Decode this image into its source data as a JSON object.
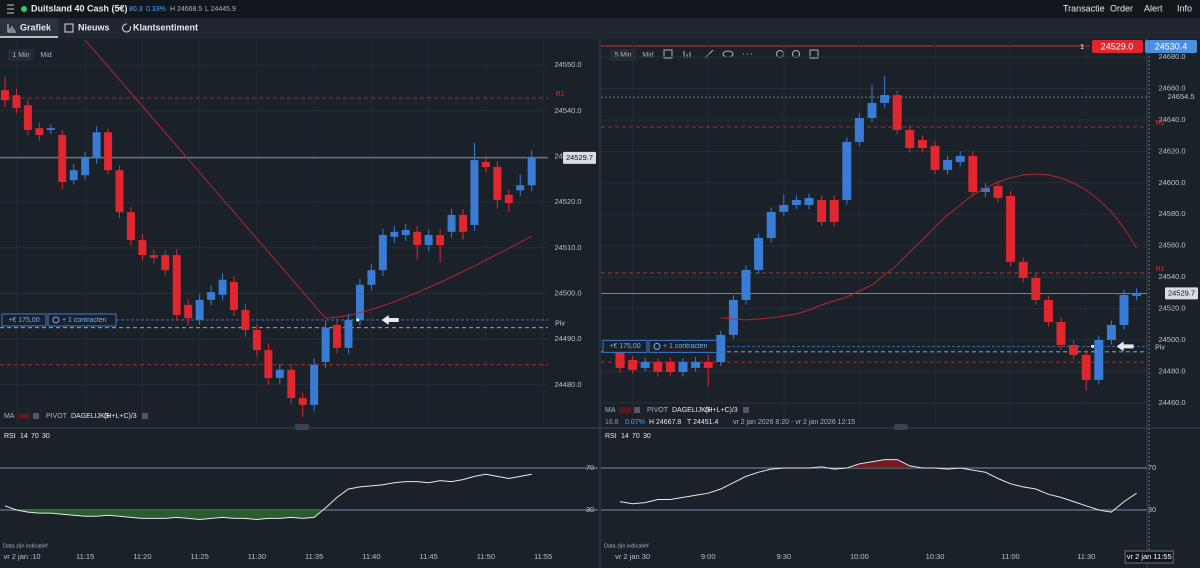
{
  "header": {
    "instrument": "Duitsland 40 Cash (5€)",
    "change": "80.3",
    "change_pct": "0.33%",
    "high": "H 24668.5",
    "low": "L 24445.9",
    "menu": [
      "Transactie",
      "Order",
      "Alert",
      "Info"
    ]
  },
  "tabs": [
    "Grafiek",
    "Nieuws",
    "Klantsentiment"
  ],
  "charts": [
    {
      "toolbar": [
        "1 Min",
        "Mid"
      ],
      "ylim": [
        24471.2,
        24555.5
      ],
      "yticks": [
        {
          "value": 24550,
          "label": "24550.0"
        },
        {
          "value": 24540,
          "label": "24540.0"
        },
        {
          "value": 24530,
          "label": "24530.0"
        },
        {
          "value": 24520,
          "label": "24520.0"
        },
        {
          "value": 24510,
          "label": "24510.0"
        },
        {
          "value": 24500,
          "label": "24500.0"
        },
        {
          "value": 24490,
          "label": "24490.0"
        },
        {
          "value": 24480,
          "label": "24480.0"
        }
      ],
      "xticks": [
        {
          "value": 1,
          "label": "vr 2 jan :10"
        },
        {
          "value": 7,
          "label": "11:15"
        },
        {
          "value": 12,
          "label": "11:20"
        },
        {
          "value": 17,
          "label": "11:25"
        },
        {
          "value": 22,
          "label": "11:30"
        },
        {
          "value": 27,
          "label": "11:35"
        },
        {
          "value": 32,
          "label": "11:40"
        },
        {
          "value": 37,
          "label": "11:45"
        },
        {
          "value": 42,
          "label": "11:50"
        },
        {
          "value": 47,
          "label": "11:55"
        }
      ],
      "up_color": "#3a7bd5",
      "down_color": "#e0262f",
      "ma_color": "#b3262c",
      "candles": [
        [
          24544.5,
          24547.5,
          24540.8,
          24542.3
        ],
        [
          24543.4,
          24544.8,
          24539.5,
          24540.6
        ],
        [
          24541.2,
          24542.5,
          24534.6,
          24535.8
        ],
        [
          24536.2,
          24537.4,
          24533.5,
          24534.7
        ],
        [
          24535.8,
          24537.0,
          24534.9,
          24536.2
        ],
        [
          24534.7,
          24535.8,
          24522.8,
          24524.4
        ],
        [
          24524.8,
          24528.3,
          24523.9,
          24527.0
        ],
        [
          24525.9,
          24531.0,
          24524.9,
          24529.6
        ],
        [
          24529.6,
          24536.6,
          24528.4,
          24535.3
        ],
        [
          24535.3,
          24536.1,
          24526.0,
          24527.0
        ],
        [
          24527.0,
          24528.0,
          24516.5,
          24517.8
        ],
        [
          24517.8,
          24519.0,
          24510.5,
          24511.7
        ],
        [
          24511.7,
          24513.0,
          24507.2,
          24508.4
        ],
        [
          24508.4,
          24509.6,
          24506.5,
          24507.8
        ],
        [
          24508.4,
          24509.5,
          24503.9,
          24505.1
        ],
        [
          24508.4,
          24509.7,
          24494.0,
          24495.3
        ],
        [
          24497.5,
          24498.7,
          24493.0,
          24494.6
        ],
        [
          24494.2,
          24499.9,
          24493.1,
          24498.6
        ],
        [
          24498.6,
          24501.8,
          24497.4,
          24500.3
        ],
        [
          24499.7,
          24504.4,
          24498.5,
          24503.0
        ],
        [
          24502.5,
          24503.8,
          24495.1,
          24496.4
        ],
        [
          24496.4,
          24497.7,
          24490.6,
          24492.0
        ],
        [
          24492.0,
          24493.4,
          24486.2,
          24487.6
        ],
        [
          24487.6,
          24489.0,
          24480.1,
          24481.5
        ],
        [
          24481.5,
          24484.6,
          24480.2,
          24483.3
        ],
        [
          24483.3,
          24484.5,
          24475.8,
          24477.1
        ],
        [
          24477.1,
          24478.3,
          24473.0,
          24475.6
        ],
        [
          24475.6,
          24485.8,
          24474.2,
          24484.4
        ],
        [
          24485.0,
          24494.1,
          24483.7,
          24492.5
        ],
        [
          24493.1,
          24494.4,
          24486.9,
          24488.1
        ],
        [
          24488.1,
          24495.5,
          24486.8,
          24494.2
        ],
        [
          24494.2,
          24503.2,
          24493.0,
          24501.9
        ],
        [
          24501.9,
          24506.4,
          24500.7,
          24505.1
        ],
        [
          24505.1,
          24514.1,
          24503.8,
          24512.8
        ],
        [
          24512.4,
          24514.8,
          24511.1,
          24513.5
        ],
        [
          24512.8,
          24515.2,
          24511.5,
          24513.9
        ],
        [
          24513.5,
          24514.7,
          24507.4,
          24510.6
        ],
        [
          24510.6,
          24514.0,
          24509.3,
          24512.8
        ],
        [
          24512.8,
          24514.1,
          24506.9,
          24510.6
        ],
        [
          24513.5,
          24518.5,
          24512.2,
          24517.2
        ],
        [
          24517.2,
          24518.4,
          24511.8,
          24513.5
        ],
        [
          24515.0,
          24533.0,
          24513.7,
          24529.2
        ],
        [
          24528.8,
          24530.1,
          24526.4,
          24527.7
        ],
        [
          24527.7,
          24528.9,
          24518.6,
          24520.5
        ],
        [
          24521.6,
          24522.8,
          24517.9,
          24519.8
        ],
        [
          24522.6,
          24526.1,
          24521.3,
          24523.7
        ],
        [
          24523.7,
          24531.3,
          24522.4,
          24529.9
        ]
      ],
      "ma": [
        null,
        null,
        null,
        null,
        null,
        null,
        null,
        24555.5,
        24552.6,
        24549.7,
        24546.8,
        24543.9,
        24541.0,
        24538.1,
        24535.2,
        24532.3,
        24529.4,
        24526.5,
        24523.6,
        24520.7,
        24517.8,
        24514.9,
        24512.0,
        24509.1,
        24506.2,
        24503.3,
        24500.4,
        24497.5,
        24494.6,
        24494.8,
        24495.2,
        24495.8,
        24496.5,
        24497.3,
        24498.2,
        24499.2,
        24500.2,
        24501.3,
        24502.4,
        24503.6,
        24504.8,
        24506.0,
        24507.3,
        24508.6,
        24509.9,
        24511.2,
        24512.5
      ],
      "levels": [
        {
          "label": "R1",
          "value": 24542.8,
          "color": "#c0392b"
        },
        {
          "label": "Piv",
          "value": 24492.5,
          "color": "#c9d1d9"
        },
        {
          "value": 24484.4,
          "color": "#c0392b"
        }
      ],
      "last": 24529.7,
      "order": {
        "amount": "+€ 175,00",
        "contracts": "+ 1 contracten",
        "value": 24494.2
      },
      "legend": {
        "ma": "MA",
        "pivot": "PIVOT",
        "pivot_type": "DAGELIJKS",
        "formula": "(H+L+C)/3"
      },
      "rsi": {
        "label": "RSI",
        "params": [
          "14",
          "70",
          "30"
        ],
        "ylim": [
          0,
          100
        ],
        "yticks": [
          70,
          30
        ],
        "values": [
          34,
          30,
          28,
          27,
          27,
          26,
          25,
          24,
          24,
          25,
          24,
          23,
          22,
          22,
          22,
          23,
          22,
          21,
          22,
          23,
          22,
          22,
          21,
          22,
          22,
          23,
          22,
          23,
          32,
          42,
          50,
          52,
          53,
          54,
          56,
          57,
          57,
          56,
          58,
          57,
          59,
          62,
          64,
          62,
          60,
          62,
          64
        ]
      },
      "note": "Data zijn indicatief"
    },
    {
      "toolbar": [
        "5 Min",
        "Mid"
      ],
      "quote": {
        "size": "1",
        "bid": "24529.0",
        "ask": "24530.4"
      },
      "ylim": [
        24446.0,
        24690.8
      ],
      "yticks": [
        {
          "value": 24680,
          "label": "24680.0"
        },
        {
          "value": 24660,
          "label": "24660.0"
        },
        {
          "value": 24640,
          "label": "24640.0"
        },
        {
          "value": 24620,
          "label": "24620.0"
        },
        {
          "value": 24600,
          "label": "24600.0"
        },
        {
          "value": 24580,
          "label": "24580.0"
        },
        {
          "value": 24560,
          "label": "24560.0"
        },
        {
          "value": 24540,
          "label": "24540.0"
        },
        {
          "value": 24520,
          "label": "24520.0"
        },
        {
          "value": 24500,
          "label": "24500.0"
        },
        {
          "value": 24480,
          "label": "24480.0"
        },
        {
          "value": 24460,
          "label": "24460.0"
        }
      ],
      "xticks": [
        {
          "value": 1,
          "label": "vr 2 jan  30"
        },
        {
          "value": 7,
          "label": "9:00"
        },
        {
          "value": 13,
          "label": "9:30"
        },
        {
          "value": 19,
          "label": "10:00"
        },
        {
          "value": 25,
          "label": "10:30"
        },
        {
          "value": 31,
          "label": "11:00"
        },
        {
          "value": 37,
          "label": "11:30"
        }
      ],
      "crosshair_time": {
        "value": 42,
        "label": "vr 2 jan 11:55"
      },
      "up_color": "#3a7bd5",
      "down_color": "#e0262f",
      "ma_color": "#b3262c",
      "candles": [
        [
          24493.7,
          24497.0,
          24479.5,
          24482.3
        ],
        [
          24487.4,
          24490.0,
          24478.6,
          24481.0
        ],
        [
          24482.3,
          24489.0,
          24480.0,
          24486.1
        ],
        [
          24486.1,
          24488.4,
          24476.9,
          24479.7
        ],
        [
          24486.1,
          24489.0,
          24477.2,
          24479.7
        ],
        [
          24479.7,
          24488.6,
          24477.0,
          24486.1
        ],
        [
          24482.3,
          24489.2,
          24480.0,
          24486.1
        ],
        [
          24486.1,
          24490.5,
          24470.5,
          24482.3
        ],
        [
          24486.1,
          24506.0,
          24483.5,
          24503.3
        ],
        [
          24503.3,
          24528.4,
          24500.7,
          24525.5
        ],
        [
          24525.5,
          24547.5,
          24522.6,
          24544.6
        ],
        [
          24544.6,
          24567.8,
          24541.9,
          24564.9
        ],
        [
          24564.9,
          24584.4,
          24562.0,
          24581.5
        ],
        [
          24581.5,
          24592.5,
          24578.7,
          24585.9
        ],
        [
          24585.9,
          24592.0,
          24583.2,
          24589.1
        ],
        [
          24585.9,
          24593.3,
          24583.0,
          24590.4
        ],
        [
          24589.1,
          24592.0,
          24572.5,
          24575.1
        ],
        [
          24589.1,
          24592.0,
          24572.3,
          24575.1
        ],
        [
          24589.1,
          24628.9,
          24586.3,
          24626.0
        ],
        [
          24626.0,
          24644.1,
          24623.2,
          24641.2
        ],
        [
          24641.2,
          24662.0,
          24638.4,
          24650.8
        ],
        [
          24650.8,
          24667.8,
          24647.9,
          24655.8
        ],
        [
          24655.8,
          24658.7,
          24630.7,
          24633.6
        ],
        [
          24633.6,
          24636.5,
          24619.2,
          24622.1
        ],
        [
          24627.2,
          24630.1,
          24619.3,
          24622.1
        ],
        [
          24623.5,
          24626.4,
          24605.4,
          24608.2
        ],
        [
          24608.2,
          24617.4,
          24605.3,
          24614.5
        ],
        [
          24613.2,
          24620.0,
          24610.4,
          24617.1
        ],
        [
          24617.1,
          24620.0,
          24591.4,
          24594.2
        ],
        [
          24594.2,
          24599.6,
          24591.3,
          24596.7
        ],
        [
          24598.0,
          24600.9,
          24587.6,
          24590.4
        ],
        [
          24591.7,
          24594.6,
          24546.8,
          24549.7
        ],
        [
          24549.7,
          24552.6,
          24536.6,
          24539.5
        ],
        [
          24539.5,
          24542.4,
          24522.6,
          24525.5
        ],
        [
          24525.5,
          24528.4,
          24508.6,
          24511.5
        ],
        [
          24511.5,
          24514.4,
          24494.0,
          24496.9
        ],
        [
          24496.9,
          24499.8,
          24487.7,
          24490.6
        ],
        [
          24490.6,
          24493.5,
          24468.0,
          24474.7
        ],
        [
          24474.7,
          24503.0,
          24471.8,
          24500.1
        ],
        [
          24500.1,
          24512.5,
          24497.2,
          24509.6
        ],
        [
          24509.6,
          24532.0,
          24506.7,
          24528.7
        ],
        [
          24528.1,
          24533.0,
          24525.2,
          24530.0
        ]
      ],
      "ma": [
        null,
        null,
        null,
        null,
        null,
        null,
        null,
        null,
        24514.1,
        24513.4,
        24512.8,
        24513.4,
        24514.1,
        24515.3,
        24516.6,
        24519.1,
        24522.3,
        24524.9,
        24527.4,
        24531.2,
        24535.1,
        24541.4,
        24547.8,
        24556.0,
        24563.7,
        24571.9,
        24579.6,
        24585.9,
        24592.3,
        24596.7,
        24600.5,
        24603.1,
        24605.0,
        24605.6,
        24605.0,
        24603.1,
        24599.9,
        24595.4,
        24589.1,
        24581.5,
        24571.3,
        24558.6
      ],
      "levels": [
        {
          "label": "R2",
          "value": 24635.5,
          "color": "#c0392b"
        },
        {
          "label": "R1",
          "value": 24542.7,
          "color": "#c0392b"
        },
        {
          "label": "Piv",
          "value": 24492.5,
          "color": "#c9d1d9"
        },
        {
          "value": 24486.0,
          "color": "#c0392b"
        }
      ],
      "high_level": 24654.5,
      "last": 24529.7,
      "order": {
        "amount": "+€ 175,00",
        "contracts": "+ 1 contracten",
        "value": 24496.0
      },
      "legend": {
        "ma": "MA",
        "pivot": "PIVOT",
        "pivot_type": "DAGELIJKS",
        "formula": "(H+L+C)/3"
      },
      "info": {
        "value": "16.8",
        "pct": "0.07%",
        "high": "H 24667.8",
        "low": "T 24451.4",
        "range": "vr 2 jan 2026 8:20 - vr 2 jan 2026 12:15"
      },
      "rsi": {
        "label": "RSI",
        "params": [
          "14",
          "70",
          "30"
        ],
        "ylim": [
          0,
          100
        ],
        "yticks": [
          70,
          30
        ],
        "values": [
          38,
          36,
          37,
          40,
          40,
          42,
          44,
          46,
          50,
          56,
          62,
          66,
          69,
          70,
          70,
          70,
          71,
          69,
          70,
          74,
          76,
          78,
          78,
          72,
          70,
          70,
          69,
          70,
          68,
          66,
          60,
          55,
          52,
          50,
          45,
          42,
          38,
          34,
          30,
          28,
          38,
          46
        ]
      },
      "note": "Data zijn indicatief"
    }
  ]
}
